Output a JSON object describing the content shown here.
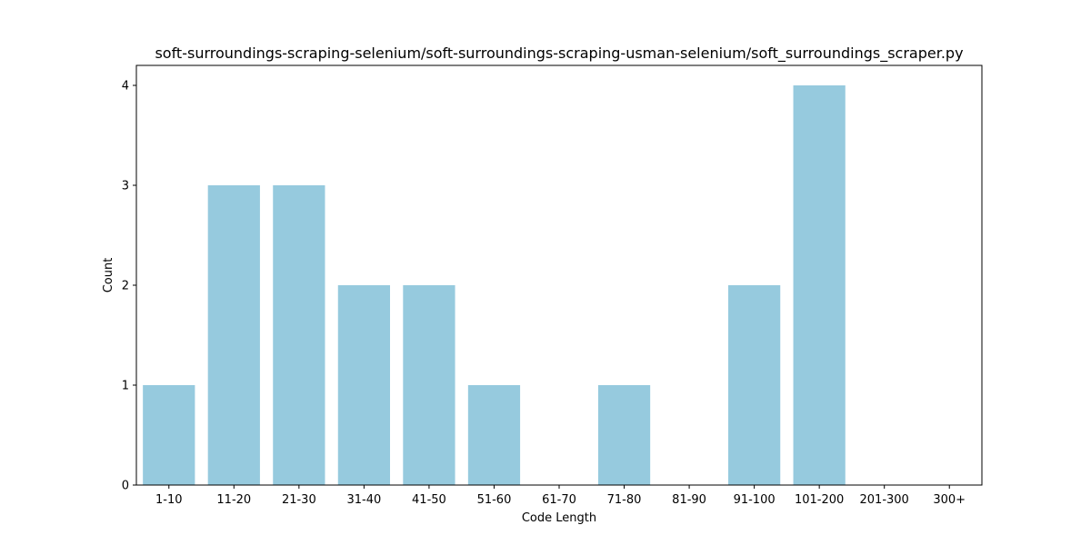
{
  "chart_data": {
    "type": "bar",
    "title": "soft-surroundings-scraping-selenium/soft-surroundings-scraping-usman-selenium/soft_surroundings_scraper.py",
    "xlabel": "Code Length",
    "ylabel": "Count",
    "categories": [
      "1-10",
      "11-20",
      "21-30",
      "31-40",
      "41-50",
      "51-60",
      "61-70",
      "71-80",
      "81-90",
      "91-100",
      "101-200",
      "201-300",
      "300+"
    ],
    "values": [
      1,
      3,
      3,
      2,
      2,
      1,
      0,
      1,
      0,
      2,
      4,
      0,
      0
    ],
    "ylim": [
      0,
      4.2
    ],
    "yticks": [
      0,
      1,
      2,
      3,
      4
    ],
    "grid": false,
    "legend": "none",
    "bar_color": "#96cade"
  }
}
